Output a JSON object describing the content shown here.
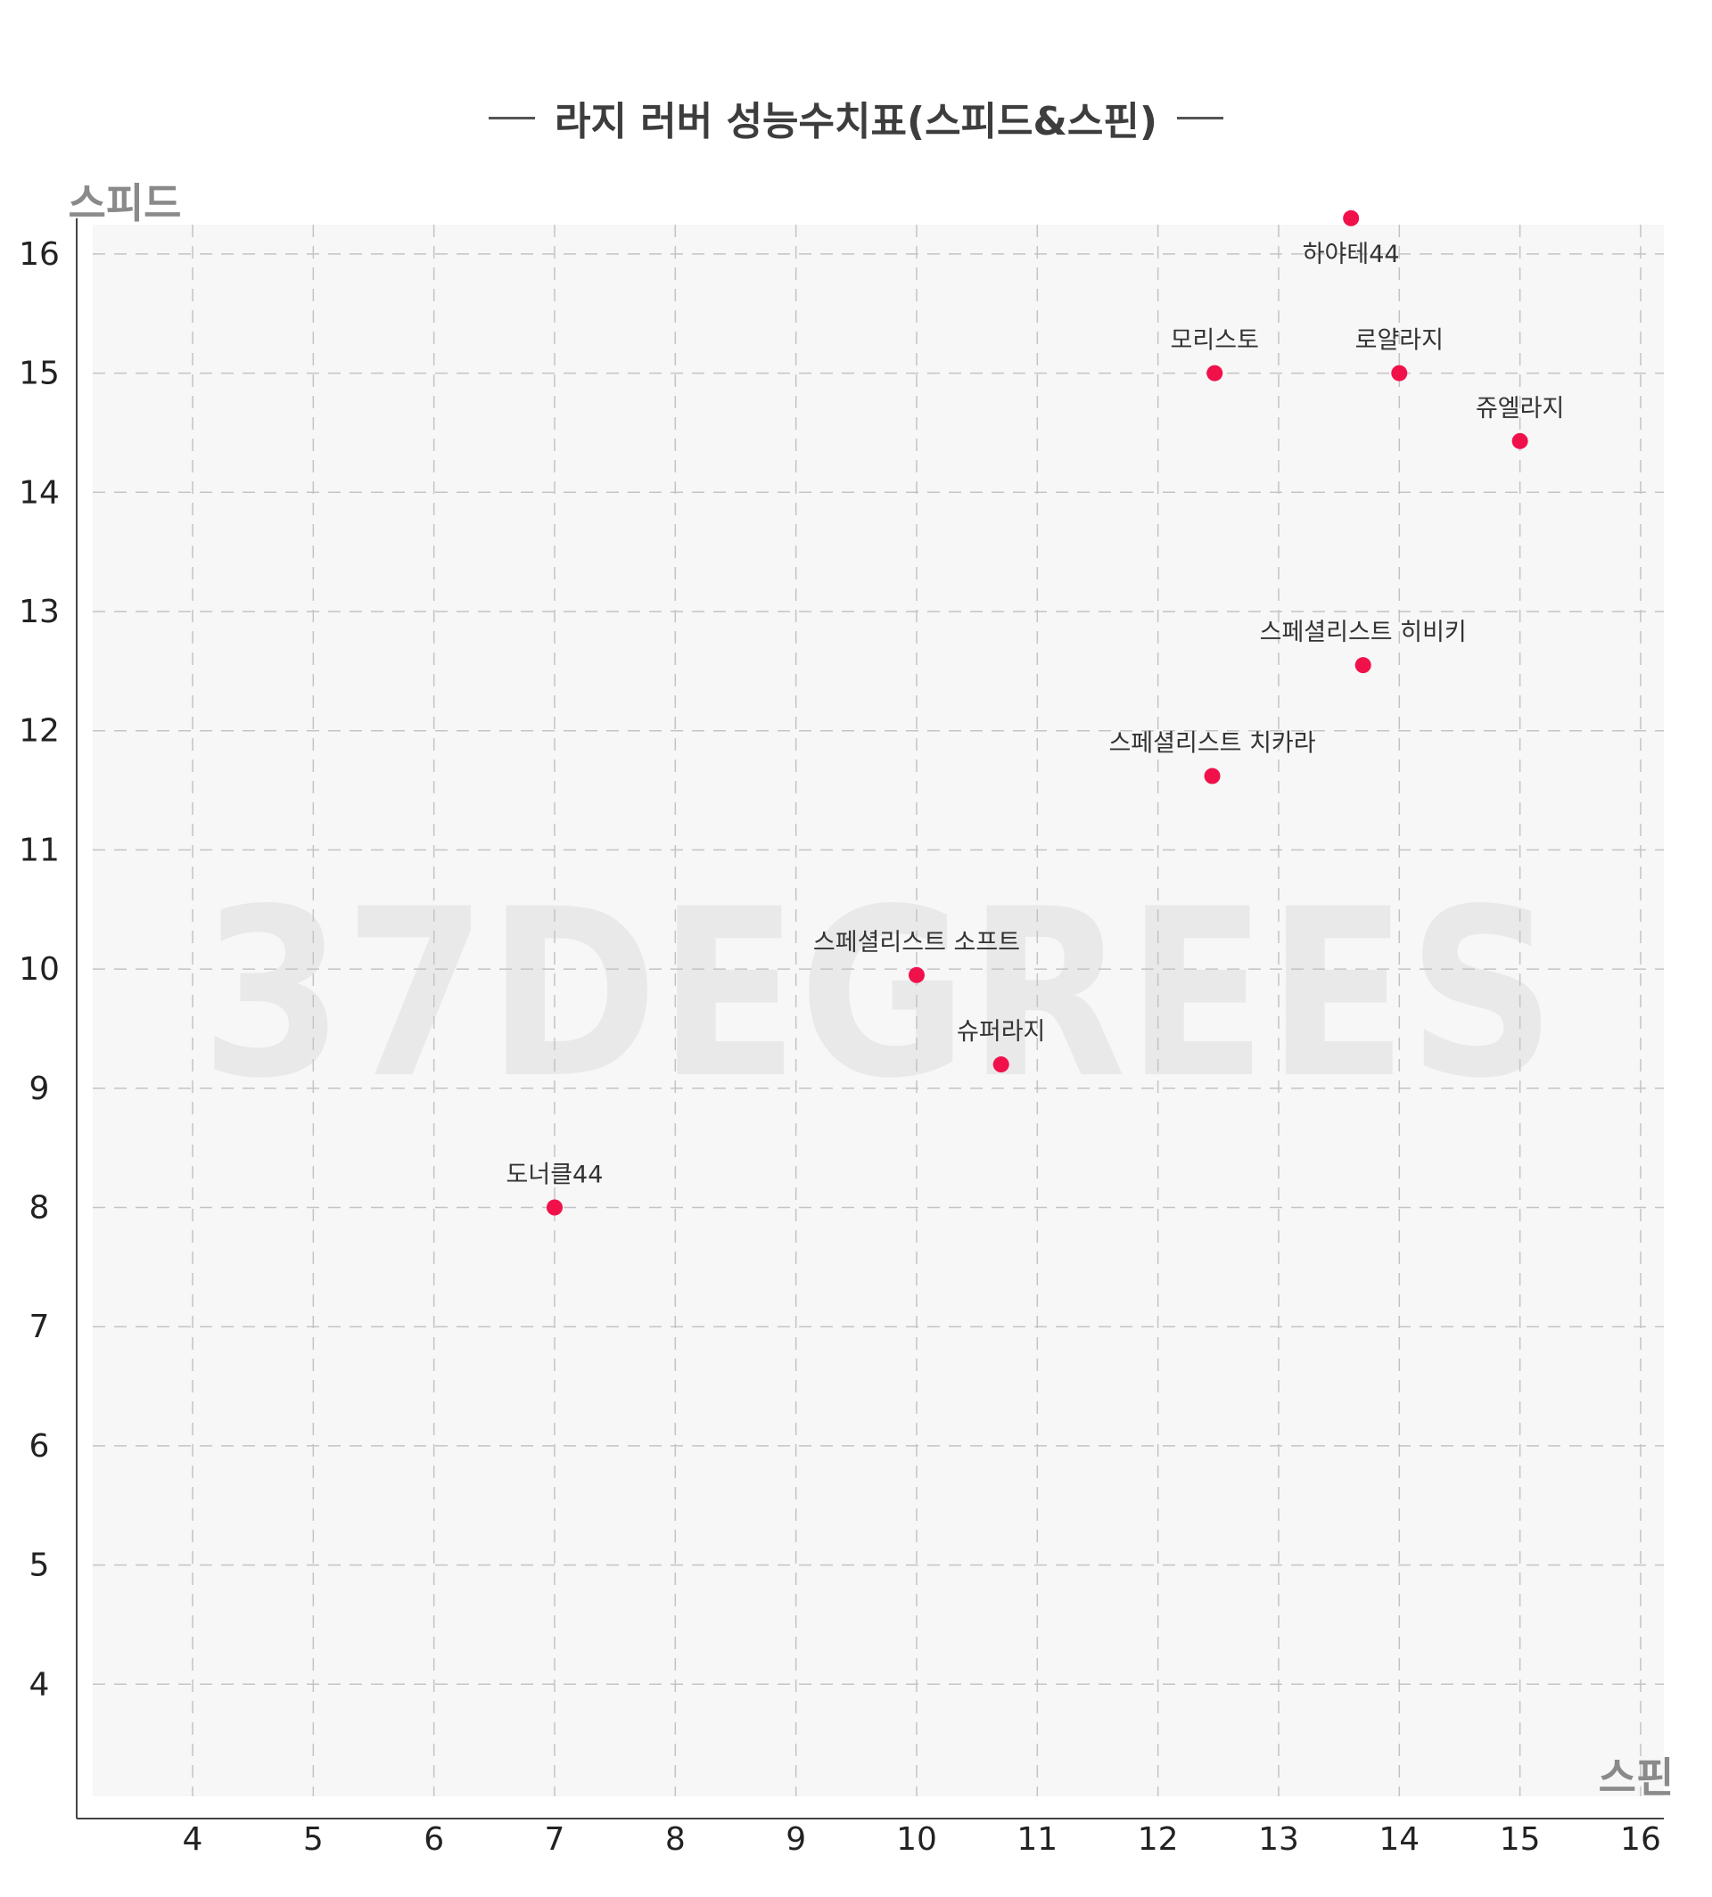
{
  "chart_data": {
    "type": "scatter",
    "title": "라지 러버 성능수치표(스피드&스핀)",
    "xlabel": "스핀",
    "ylabel": "스피드",
    "xlim": [
      3.15,
      16.2
    ],
    "ylim": [
      3.0,
      16.3
    ],
    "xticks": [
      4,
      5,
      6,
      7,
      8,
      9,
      10,
      11,
      12,
      13,
      14,
      15,
      16
    ],
    "yticks": [
      4,
      5,
      6,
      7,
      8,
      9,
      10,
      11,
      12,
      13,
      14,
      15,
      16
    ],
    "grid": true,
    "watermark": "37DEGREES",
    "point_color": "#f0114b",
    "points": [
      {
        "name": "하야테44",
        "x": 13.6,
        "y": 16.3,
        "label_pos": "below"
      },
      {
        "name": "모리스토",
        "x": 12.47,
        "y": 15.0,
        "label_pos": "above"
      },
      {
        "name": "로얄라지",
        "x": 14.0,
        "y": 15.0,
        "label_pos": "above"
      },
      {
        "name": "쥬엘라지",
        "x": 15.0,
        "y": 14.43,
        "label_pos": "above"
      },
      {
        "name": "스페셜리스트 히비키",
        "x": 13.7,
        "y": 12.55,
        "label_pos": "above"
      },
      {
        "name": "스페셜리스트 치카라",
        "x": 12.45,
        "y": 11.62,
        "label_pos": "above"
      },
      {
        "name": "스페셜리스트 소프트",
        "x": 10.0,
        "y": 9.95,
        "label_pos": "above"
      },
      {
        "name": "슈퍼라지",
        "x": 10.7,
        "y": 9.2,
        "label_pos": "above"
      },
      {
        "name": "도너클44",
        "x": 7.0,
        "y": 8.0,
        "label_pos": "above"
      }
    ]
  }
}
